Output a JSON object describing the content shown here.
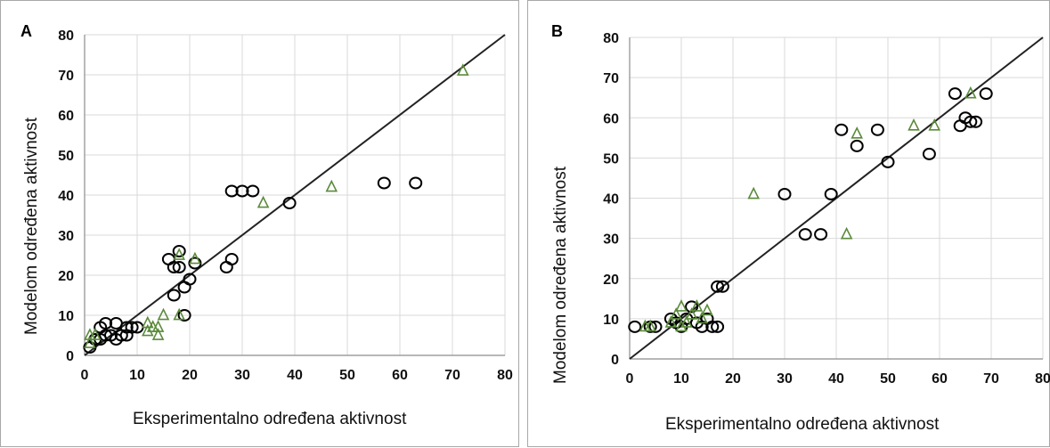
{
  "chart_data": [
    {
      "type": "scatter",
      "panel": "A",
      "xlabel": "Eksperimentalno određena aktivnost",
      "ylabel": "Modelom određena aktivnost",
      "xlim": [
        0,
        80
      ],
      "ylim": [
        0,
        80
      ],
      "xticks": [
        "0",
        "10",
        "20",
        "30",
        "40",
        "50",
        "60",
        "70",
        "80"
      ],
      "yticks": [
        "0",
        "10",
        "20",
        "30",
        "40",
        "50",
        "60",
        "70",
        "80"
      ],
      "grid": true,
      "reference_line": [
        [
          0,
          0
        ],
        [
          80,
          80
        ]
      ],
      "series": [
        {
          "marker": "circle",
          "color": "#000000",
          "points": [
            [
              1,
              2
            ],
            [
              2,
              4
            ],
            [
              3,
              4
            ],
            [
              4,
              5
            ],
            [
              5,
              5
            ],
            [
              4,
              8
            ],
            [
              6,
              8
            ],
            [
              7,
              5
            ],
            [
              8,
              7
            ],
            [
              8,
              5
            ],
            [
              9,
              7
            ],
            [
              10,
              7
            ],
            [
              3,
              7
            ],
            [
              6,
              4
            ],
            [
              16,
              24
            ],
            [
              17,
              22
            ],
            [
              18,
              22
            ],
            [
              17,
              15
            ],
            [
              18,
              26
            ],
            [
              19,
              10
            ],
            [
              19,
              17
            ],
            [
              20,
              19
            ],
            [
              21,
              23
            ],
            [
              27,
              22
            ],
            [
              28,
              24
            ],
            [
              28,
              41
            ],
            [
              30,
              41
            ],
            [
              32,
              41
            ],
            [
              39,
              38
            ],
            [
              57,
              43
            ],
            [
              63,
              43
            ]
          ]
        },
        {
          "marker": "triangle",
          "color": "#5a8a3a",
          "points": [
            [
              1,
              3
            ],
            [
              1,
              5
            ],
            [
              2,
              5
            ],
            [
              12,
              6
            ],
            [
              12,
              8
            ],
            [
              13,
              7
            ],
            [
              14,
              5
            ],
            [
              14,
              7
            ],
            [
              15,
              10
            ],
            [
              18,
              10
            ],
            [
              18,
              25
            ],
            [
              21,
              24
            ],
            [
              34,
              38
            ],
            [
              47,
              42
            ],
            [
              72,
              71
            ]
          ]
        }
      ]
    },
    {
      "type": "scatter",
      "panel": "B",
      "xlabel": "Eksperimentalno određena aktivnost",
      "ylabel": "Modelom određena aktivnost",
      "xlim": [
        0,
        80
      ],
      "ylim": [
        0,
        80
      ],
      "xticks": [
        "0",
        "10",
        "20",
        "30",
        "40",
        "50",
        "60",
        "70",
        "80"
      ],
      "yticks": [
        "0",
        "10",
        "20",
        "30",
        "40",
        "50",
        "60",
        "70",
        "80"
      ],
      "grid": true,
      "reference_line": [
        [
          0,
          0
        ],
        [
          80,
          80
        ]
      ],
      "series": [
        {
          "marker": "circle",
          "color": "#000000",
          "points": [
            [
              1,
              8
            ],
            [
              4,
              8
            ],
            [
              5,
              8
            ],
            [
              8,
              10
            ],
            [
              9,
              9
            ],
            [
              10,
              8
            ],
            [
              11,
              10
            ],
            [
              12,
              13
            ],
            [
              13,
              9
            ],
            [
              14,
              8
            ],
            [
              15,
              10
            ],
            [
              16,
              8
            ],
            [
              17,
              18
            ],
            [
              17,
              8
            ],
            [
              18,
              18
            ],
            [
              30,
              41
            ],
            [
              34,
              31
            ],
            [
              37,
              31
            ],
            [
              39,
              41
            ],
            [
              41,
              57
            ],
            [
              44,
              53
            ],
            [
              48,
              57
            ],
            [
              50,
              49
            ],
            [
              58,
              51
            ],
            [
              63,
              66
            ],
            [
              64,
              58
            ],
            [
              65,
              60
            ],
            [
              66,
              59
            ],
            [
              67,
              59
            ],
            [
              69,
              66
            ]
          ]
        },
        {
          "marker": "triangle",
          "color": "#5a8a3a",
          "points": [
            [
              3,
              8
            ],
            [
              4,
              8
            ],
            [
              8,
              9
            ],
            [
              9,
              11
            ],
            [
              10,
              8
            ],
            [
              10,
              13
            ],
            [
              11,
              9
            ],
            [
              12,
              11
            ],
            [
              13,
              13
            ],
            [
              14,
              10
            ],
            [
              15,
              12
            ],
            [
              24,
              41
            ],
            [
              42,
              31
            ],
            [
              44,
              56
            ],
            [
              55,
              58
            ],
            [
              59,
              58
            ],
            [
              66,
              66
            ]
          ]
        }
      ]
    }
  ],
  "panels": {
    "a": {
      "letter": "A",
      "xlabel": "Eksperimentalno određena aktivnost",
      "ylabel": "Modelom određena aktivnost"
    },
    "b": {
      "letter": "B",
      "xlabel": "Eksperimentalno određena aktivnost",
      "ylabel": "Modelom određena aktivnost"
    }
  }
}
